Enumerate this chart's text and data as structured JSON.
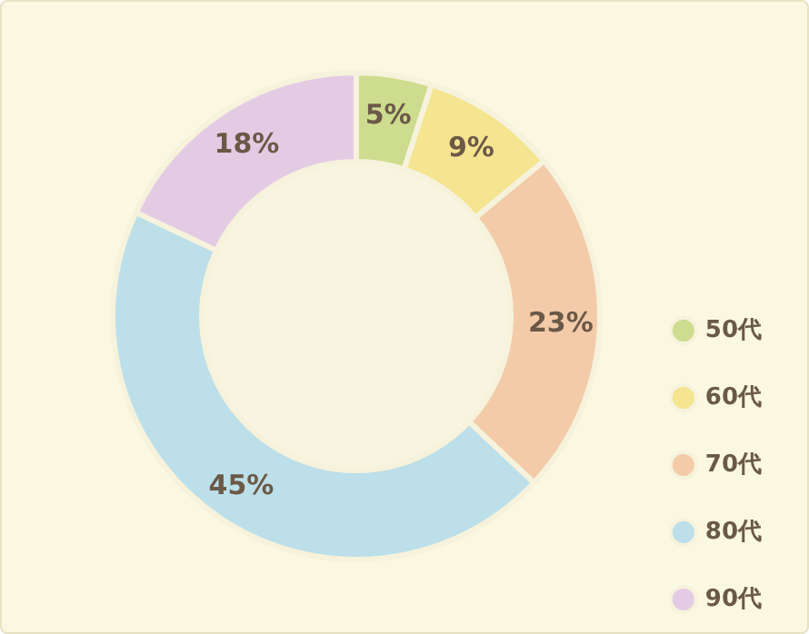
{
  "chart_data": {
    "type": "donut",
    "categories": [
      "50代",
      "60代",
      "70代",
      "80代",
      "90代"
    ],
    "values": [
      5,
      9,
      23,
      45,
      18
    ],
    "colors": [
      "#cddc8e",
      "#f5e490",
      "#f3cba9",
      "#bcdfe9",
      "#e4cbe4"
    ],
    "value_labels": [
      "5%",
      "9%",
      "23%",
      "45%",
      "18%"
    ],
    "legend": "right"
  }
}
